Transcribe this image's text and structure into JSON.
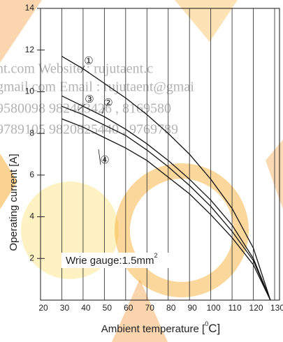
{
  "chart_data": {
    "type": "line",
    "xlabel": [
      "Ambient temperature [",
      "0",
      "C]"
    ],
    "ylabel": "Operating current [A]",
    "annotation": {
      "text": "Wrie gauge:1.5mm",
      "superscript": "2"
    },
    "watermark": [
      "nt.com         Website : rujutaent.c",
      "gmail.com   Email : rujutaent@gmai",
      "9580098       982463426 , 8169580",
      "9789105       9820825440 , 9769789"
    ],
    "x": [
      30,
      40,
      50,
      60,
      70,
      80,
      90,
      100,
      110,
      120,
      128
    ],
    "series": [
      {
        "name": "①",
        "color": "#111111",
        "values": [
          11.7,
          11.1,
          10.4,
          9.7,
          8.9,
          8.0,
          7.0,
          5.8,
          4.4,
          2.5,
          0
        ]
      },
      {
        "name": "②",
        "color": "#111111",
        "values": [
          9.3,
          8.9,
          8.4,
          7.9,
          7.2,
          6.4,
          5.5,
          4.5,
          3.3,
          1.9,
          0
        ]
      },
      {
        "name": "③",
        "color": "#111111",
        "values": [
          9.8,
          9.3,
          8.8,
          8.2,
          7.5,
          6.7,
          5.8,
          4.8,
          3.6,
          2.0,
          0
        ]
      },
      {
        "name": "④",
        "color": "#111111",
        "values": [
          8.7,
          8.3,
          7.8,
          7.3,
          6.7,
          5.9,
          5.1,
          4.1,
          3.0,
          1.7,
          0
        ]
      }
    ],
    "xlim": [
      20,
      130
    ],
    "ylim": [
      0,
      14
    ],
    "xticks": [
      20,
      30,
      40,
      50,
      60,
      70,
      80,
      90,
      100,
      110,
      120,
      130
    ],
    "yticks": [
      2,
      4,
      6,
      8,
      10,
      12,
      14
    ],
    "grid": true
  }
}
